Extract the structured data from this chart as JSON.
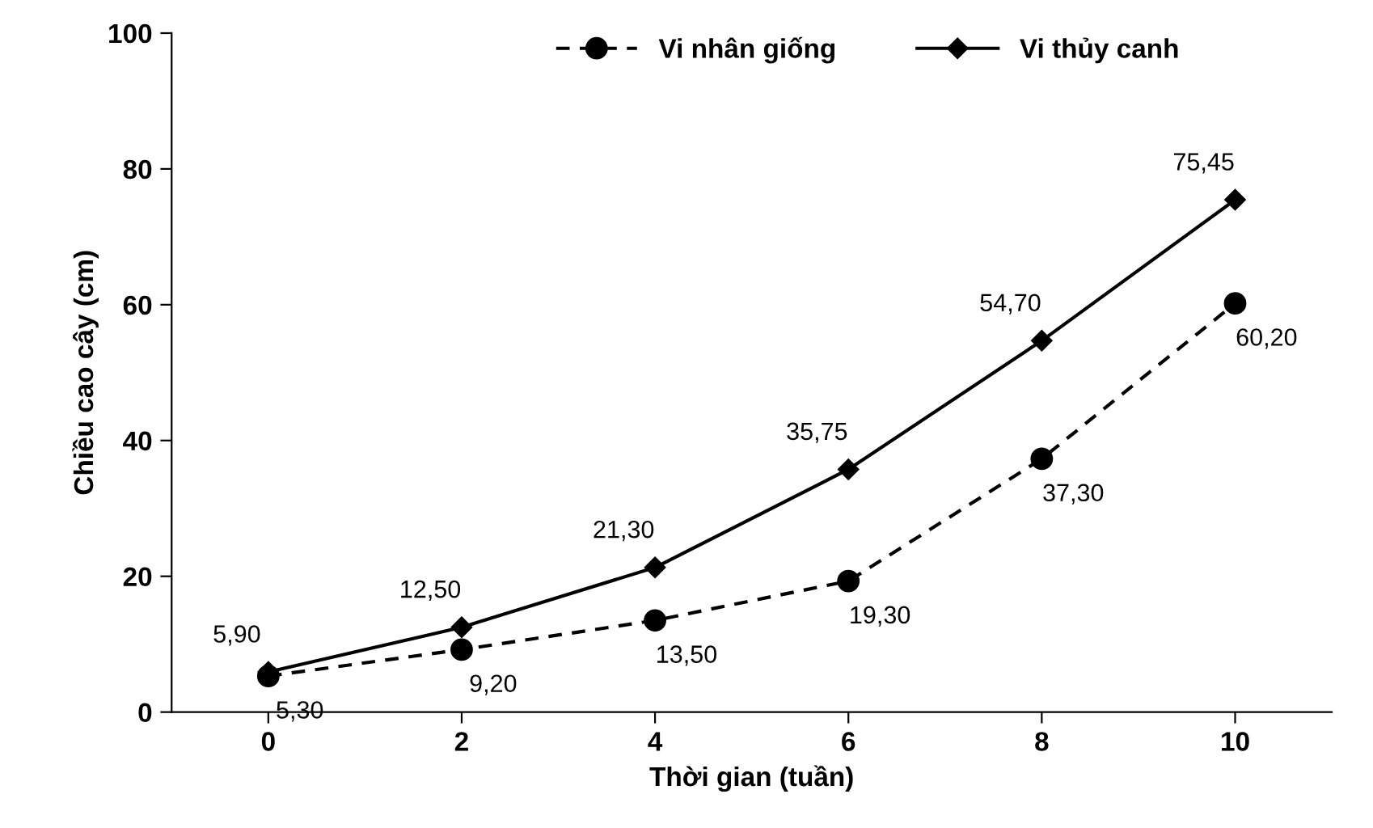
{
  "chart_data": {
    "type": "line",
    "xlabel": "Thời gian (tuần)",
    "ylabel": "Chiều cao cây (cm)",
    "x": [
      0,
      2,
      4,
      6,
      8,
      10
    ],
    "xlim": [
      -1,
      11
    ],
    "xticks": [
      0,
      2,
      4,
      6,
      8,
      10
    ],
    "ylim": [
      0,
      100
    ],
    "yticks": [
      0,
      20,
      40,
      60,
      80,
      100
    ],
    "grid": false,
    "legend": "top",
    "series": [
      {
        "name": "Vi nhân giống",
        "color": "#000000",
        "marker": "circle",
        "line_style": "dashed",
        "values": [
          5.3,
          9.2,
          13.5,
          19.3,
          37.3,
          60.2
        ],
        "value_labels": [
          "5,30",
          "9,20",
          "13,50",
          "19,30",
          "37,30",
          "60,20"
        ]
      },
      {
        "name": "Vi thủy canh",
        "color": "#000000",
        "marker": "diamond",
        "line_style": "solid",
        "values": [
          5.9,
          12.5,
          21.3,
          35.75,
          54.7,
          75.45
        ],
        "value_labels": [
          "5,90",
          "12,50",
          "21,30",
          "35,75",
          "54,70",
          "75,45"
        ]
      }
    ]
  }
}
